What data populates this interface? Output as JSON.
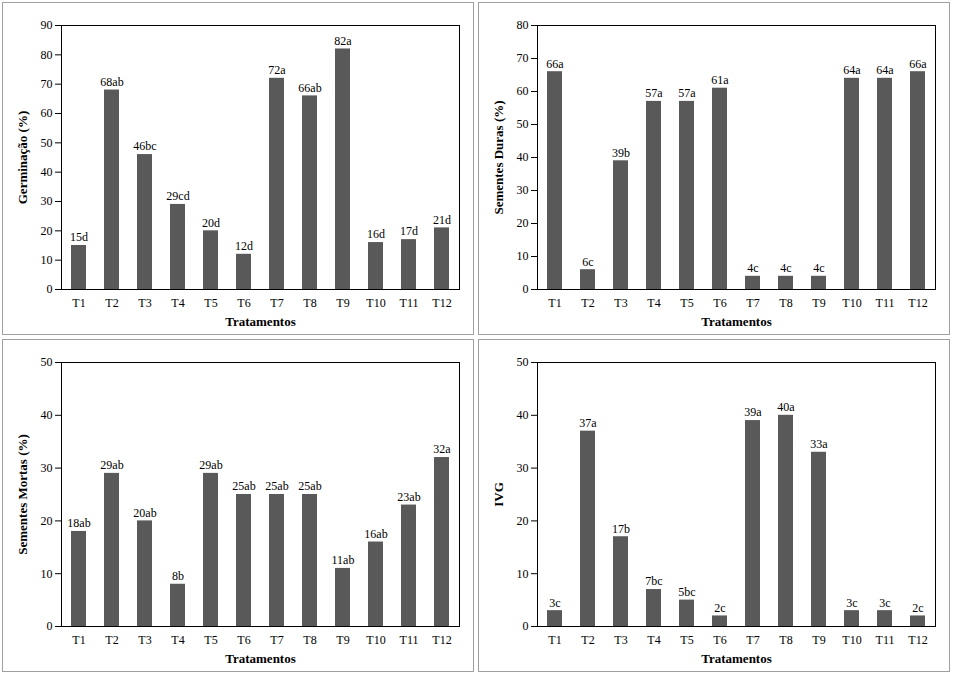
{
  "chart_data": [
    {
      "type": "bar",
      "xlabel": "Tratamentos",
      "ylabel": "Germinação (%)",
      "categories": [
        "T1",
        "T2",
        "T3",
        "T4",
        "T5",
        "T6",
        "T7",
        "T8",
        "T9",
        "T10",
        "T11",
        "T12"
      ],
      "values": [
        15,
        68,
        46,
        29,
        20,
        12,
        72,
        66,
        82,
        16,
        17,
        21
      ],
      "value_labels": [
        "15d",
        "68ab",
        "46bc",
        "29cd",
        "20d",
        "12d",
        "72a",
        "66ab",
        "82a",
        "16d",
        "17d",
        "21d"
      ],
      "color": "#595959",
      "ylim": [
        0,
        90
      ],
      "yticks": [
        0,
        10,
        20,
        30,
        40,
        50,
        60,
        70,
        80,
        90
      ],
      "grid": false,
      "data_labels": true
    },
    {
      "type": "bar",
      "xlabel": "Tratamentos",
      "ylabel": "Sementes Duras (%)",
      "categories": [
        "T1",
        "T2",
        "T3",
        "T4",
        "T5",
        "T6",
        "T7",
        "T8",
        "T9",
        "T10",
        "T11",
        "T12"
      ],
      "values": [
        66,
        6,
        39,
        57,
        57,
        61,
        4,
        4,
        4,
        64,
        64,
        66
      ],
      "value_labels": [
        "66a",
        "6c",
        "39b",
        "57a",
        "57a",
        "61a",
        "4c",
        "4c",
        "4c",
        "64a",
        "64a",
        "66a"
      ],
      "color": "#595959",
      "ylim": [
        0,
        80
      ],
      "yticks": [
        0,
        10,
        20,
        30,
        40,
        50,
        60,
        70,
        80
      ],
      "grid": false,
      "data_labels": true
    },
    {
      "type": "bar",
      "xlabel": "Tratamentos",
      "ylabel": "Sementes Mortas (%)",
      "categories": [
        "T1",
        "T2",
        "T3",
        "T4",
        "T5",
        "T6",
        "T7",
        "T8",
        "T9",
        "T10",
        "T11",
        "T12"
      ],
      "values": [
        18,
        29,
        20,
        8,
        29,
        25,
        25,
        25,
        11,
        16,
        23,
        32
      ],
      "value_labels": [
        "18ab",
        "29ab",
        "20ab",
        "8b",
        "29ab",
        "25ab",
        "25ab",
        "25ab",
        "11ab",
        "16ab",
        "23ab",
        "32a"
      ],
      "color": "#595959",
      "ylim": [
        0,
        50
      ],
      "yticks": [
        0,
        10,
        20,
        30,
        40,
        50
      ],
      "grid": false,
      "data_labels": true
    },
    {
      "type": "bar",
      "xlabel": "Tratamentos",
      "ylabel": "IVG",
      "categories": [
        "T1",
        "T2",
        "T3",
        "T4",
        "T5",
        "T6",
        "T7",
        "T8",
        "T9",
        "T10",
        "T11",
        "T12"
      ],
      "values": [
        3,
        37,
        17,
        7,
        5,
        2,
        39,
        40,
        33,
        3,
        3,
        2
      ],
      "value_labels": [
        "3c",
        "37a",
        "17b",
        "7bc",
        "5bc",
        "2c",
        "39a",
        "40a",
        "33a",
        "3c",
        "3c",
        "2c"
      ],
      "color": "#595959",
      "ylim": [
        0,
        50
      ],
      "yticks": [
        0,
        10,
        20,
        30,
        40,
        50
      ],
      "grid": false,
      "data_labels": true
    }
  ]
}
